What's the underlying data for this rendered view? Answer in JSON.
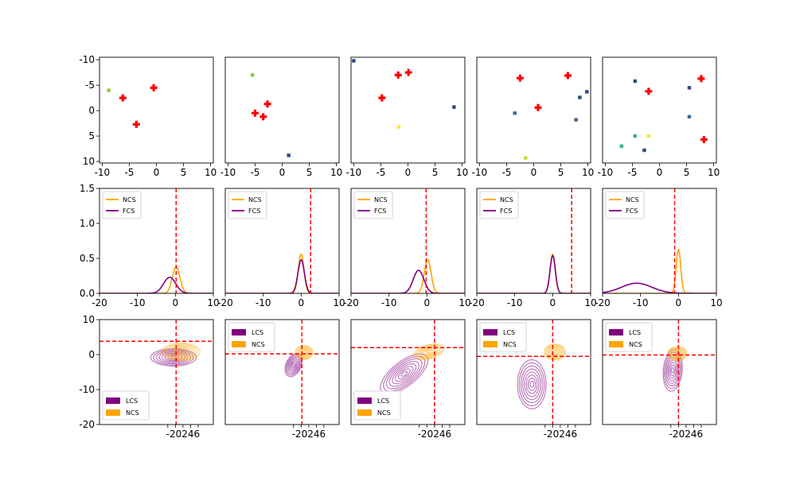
{
  "colors": {
    "ncs": "#FFA500",
    "fcs": "#800080",
    "lcs": "#800080",
    "marker": "#FF0000",
    "ref_line": "#FF0000",
    "axes": "#000000"
  },
  "chart_data": [
    {
      "type": "scatter",
      "row": 1,
      "col": 1,
      "xlim": [
        -10.5,
        10.5
      ],
      "ylim": [
        10.3,
        -10.5
      ],
      "y_inverted": true,
      "xticks": [
        "-10",
        "-5",
        "0",
        "5",
        "10"
      ],
      "yticks": [
        "-10",
        "-5",
        "0",
        "5",
        "10"
      ],
      "cross_markers": [
        {
          "x": -0.5,
          "y": -4.5
        },
        {
          "x": -6.2,
          "y": -2.5
        },
        {
          "x": -3.7,
          "y": 2.7
        }
      ],
      "square_markers": [
        {
          "x": -8.8,
          "y": -4.0,
          "color": "#9ACD32"
        }
      ]
    },
    {
      "type": "scatter",
      "row": 1,
      "col": 2,
      "xlim": [
        -10.5,
        10.5
      ],
      "ylim": [
        10.3,
        -10.5
      ],
      "y_inverted": true,
      "xticks": [
        "-10",
        "-5",
        "0",
        "5",
        "10"
      ],
      "cross_markers": [
        {
          "x": -2.7,
          "y": -1.3
        },
        {
          "x": -5.0,
          "y": 0.5
        },
        {
          "x": -3.5,
          "y": 1.2
        }
      ],
      "square_markers": [
        {
          "x": -5.5,
          "y": -7.0,
          "color": "#7CCD4C"
        },
        {
          "x": 1.2,
          "y": 8.8,
          "color": "#2E4A7F"
        }
      ]
    },
    {
      "type": "scatter",
      "row": 1,
      "col": 3,
      "xlim": [
        -10.5,
        10.5
      ],
      "ylim": [
        10.3,
        -10.5
      ],
      "y_inverted": true,
      "xticks": [
        "-10",
        "-5",
        "0",
        "5",
        "10"
      ],
      "cross_markers": [
        {
          "x": 0.1,
          "y": -7.5
        },
        {
          "x": -1.8,
          "y": -7.0
        },
        {
          "x": -4.8,
          "y": -2.5
        }
      ],
      "square_markers": [
        {
          "x": -10.0,
          "y": -9.8,
          "color": "#2E4A7F"
        },
        {
          "x": 8.5,
          "y": -0.7,
          "color": "#2E4A7F"
        },
        {
          "x": -1.7,
          "y": 3.2,
          "color": "#FDE725"
        }
      ]
    },
    {
      "type": "scatter",
      "row": 1,
      "col": 4,
      "xlim": [
        -10.5,
        10.5
      ],
      "ylim": [
        10.3,
        -10.5
      ],
      "y_inverted": true,
      "xticks": [
        "-10",
        "-5",
        "0",
        "5",
        "10"
      ],
      "cross_markers": [
        {
          "x": 6.3,
          "y": -6.9
        },
        {
          "x": -2.5,
          "y": -6.4
        },
        {
          "x": 0.8,
          "y": -0.6
        }
      ],
      "square_markers": [
        {
          "x": 9.8,
          "y": -3.7,
          "color": "#2E4A7F"
        },
        {
          "x": 8.5,
          "y": -2.6,
          "color": "#2E4A7F"
        },
        {
          "x": -3.5,
          "y": 0.5,
          "color": "#3B6A9A"
        },
        {
          "x": 7.8,
          "y": 1.8,
          "color": "#3B6A9A"
        },
        {
          "x": -1.5,
          "y": 9.3,
          "color": "#C5D930"
        }
      ]
    },
    {
      "type": "scatter",
      "row": 1,
      "col": 5,
      "xlim": [
        -10.5,
        10.5
      ],
      "ylim": [
        10.3,
        -10.5
      ],
      "y_inverted": true,
      "xticks": [
        "-10",
        "-5",
        "0",
        "5",
        "10"
      ],
      "cross_markers": [
        {
          "x": 7.7,
          "y": -6.3
        },
        {
          "x": -2.0,
          "y": -3.8
        },
        {
          "x": 8.2,
          "y": 5.7
        }
      ],
      "square_markers": [
        {
          "x": -4.5,
          "y": -5.8,
          "color": "#2E4A7F"
        },
        {
          "x": 5.5,
          "y": -4.5,
          "color": "#2E4A7F"
        },
        {
          "x": 5.5,
          "y": 1.2,
          "color": "#3B6A9A"
        },
        {
          "x": -4.5,
          "y": 5.0,
          "color": "#35B779"
        },
        {
          "x": -2.0,
          "y": 5.0,
          "color": "#FDE725"
        },
        {
          "x": -7.0,
          "y": 7.0,
          "color": "#35B779"
        },
        {
          "x": -2.8,
          "y": 7.8,
          "color": "#2E4A7F"
        }
      ]
    },
    {
      "type": "line",
      "row": 2,
      "col": 1,
      "xlim": [
        -20,
        10
      ],
      "ylim": [
        0,
        1.5
      ],
      "xticks": [
        "-20",
        "-10",
        "0",
        "10"
      ],
      "yticks": [
        "0.0",
        "0.5",
        "1.0",
        "1.5"
      ],
      "vline": 0.2,
      "legend": "upper left",
      "series": [
        {
          "name": "NCS",
          "color": "#FFA500",
          "mu": 0.2,
          "sigma": 1.0,
          "amp": 0.38
        },
        {
          "name": "FCS",
          "color": "#800080",
          "mu": -1.5,
          "sigma": 1.6,
          "amp": 0.23
        }
      ]
    },
    {
      "type": "line",
      "row": 2,
      "col": 2,
      "xlim": [
        -20,
        10
      ],
      "ylim": [
        0,
        1.5
      ],
      "xticks": [
        "-20",
        "-10",
        "0",
        "10"
      ],
      "vline": 2.5,
      "legend": "upper left",
      "series": [
        {
          "name": "NCS",
          "color": "#FFA500",
          "mu": 0.0,
          "sigma": 0.75,
          "amp": 0.56
        },
        {
          "name": "FCS",
          "color": "#800080",
          "mu": 0.0,
          "sigma": 0.85,
          "amp": 0.48
        }
      ]
    },
    {
      "type": "line",
      "row": 2,
      "col": 3,
      "xlim": [
        -20,
        10
      ],
      "ylim": [
        0,
        1.5
      ],
      "xticks": [
        "-20",
        "-10",
        "0",
        "10"
      ],
      "vline": -0.2,
      "legend": "upper left",
      "series": [
        {
          "name": "NCS",
          "color": "#FFA500",
          "mu": 0.2,
          "sigma": 0.9,
          "amp": 0.48
        },
        {
          "name": "FCS",
          "color": "#800080",
          "mu": -2.2,
          "sigma": 1.4,
          "amp": 0.33
        }
      ]
    },
    {
      "type": "line",
      "row": 2,
      "col": 4,
      "xlim": [
        -20,
        10
      ],
      "ylim": [
        0,
        1.5
      ],
      "xticks": [
        "-20",
        "-10",
        "0",
        "10"
      ],
      "vline": 5.0,
      "legend": "upper left",
      "series": [
        {
          "name": "NCS",
          "color": "#FFA500",
          "mu": 0.0,
          "sigma": 0.7,
          "amp": 0.56
        },
        {
          "name": "FCS",
          "color": "#800080",
          "mu": 0.0,
          "sigma": 0.7,
          "amp": 0.54
        }
      ]
    },
    {
      "type": "line",
      "row": 2,
      "col": 5,
      "xlim": [
        -20,
        10
      ],
      "ylim": [
        0,
        1.5
      ],
      "xticks": [
        "-20",
        "-10",
        "0",
        "10"
      ],
      "vline": -1.0,
      "legend": "upper left",
      "series": [
        {
          "name": "NCS",
          "color": "#FFA500",
          "mu": 0.0,
          "sigma": 0.6,
          "amp": 0.63
        },
        {
          "name": "FCS",
          "color": "#800080",
          "mu": -11.0,
          "sigma": 4.0,
          "amp": 0.145
        }
      ]
    },
    {
      "type": "contour",
      "row": 3,
      "col": 1,
      "xlim": [
        -20,
        10
      ],
      "ylim": [
        -20,
        10
      ],
      "xticks": [
        "-2",
        "0",
        "2",
        "4",
        "6"
      ],
      "yticks": [
        "-20",
        "-10",
        "0",
        "10"
      ],
      "vline": 0.2,
      "hline": 3.8,
      "legend": "lower left",
      "series": [
        {
          "name": "LCS",
          "color": "#800080",
          "cx": -0.5,
          "cy": -0.8,
          "rx": 6.0,
          "ry": 2.5,
          "rot": 0
        },
        {
          "name": "NCS",
          "color": "#FFA500",
          "cx": 1.5,
          "cy": 0.8,
          "rx": 5.0,
          "ry": 2.5,
          "rot": 0
        }
      ]
    },
    {
      "type": "contour",
      "row": 3,
      "col": 2,
      "xlim": [
        -20,
        10
      ],
      "ylim": [
        -20,
        10
      ],
      "xticks": [
        "-2",
        "0",
        "2",
        "4",
        "6"
      ],
      "vline": 0.2,
      "hline": 0.2,
      "legend": "upper left",
      "series": [
        {
          "name": "LCS",
          "color": "#800080",
          "cx": -2.0,
          "cy": -3.0,
          "rx": 2.0,
          "ry": 3.5,
          "rot": 25
        },
        {
          "name": "NCS",
          "color": "#FFA500",
          "cx": 0.8,
          "cy": 0.6,
          "rx": 2.3,
          "ry": 2.0,
          "rot": 0
        }
      ]
    },
    {
      "type": "contour",
      "row": 3,
      "col": 3,
      "xlim": [
        -20,
        10
      ],
      "ylim": [
        -20,
        10
      ],
      "xticks": [
        "-2",
        "0",
        "2",
        "4",
        "6"
      ],
      "vline": 2.0,
      "hline": 2.0,
      "legend": "lower left",
      "series": [
        {
          "name": "LCS",
          "color": "#800080",
          "cx": -6.0,
          "cy": -5.5,
          "rx": 7.5,
          "ry": 3.5,
          "rot": -38
        },
        {
          "name": "NCS",
          "color": "#FFA500",
          "cx": 0.5,
          "cy": 0.8,
          "rx": 4.0,
          "ry": 2.0,
          "rot": -15
        }
      ]
    },
    {
      "type": "contour",
      "row": 3,
      "col": 4,
      "xlim": [
        -20,
        10
      ],
      "ylim": [
        -20,
        10
      ],
      "xticks": [
        "-2",
        "0",
        "2",
        "4",
        "6"
      ],
      "vline": 0.0,
      "hline": -0.5,
      "legend": "upper left",
      "series": [
        {
          "name": "LCS",
          "color": "#800080",
          "cx": -5.5,
          "cy": -8.5,
          "rx": 3.8,
          "ry": 7.0,
          "rot": 0
        },
        {
          "name": "NCS",
          "color": "#FFA500",
          "cx": 0.6,
          "cy": 0.7,
          "rx": 2.8,
          "ry": 2.3,
          "rot": 0
        }
      ]
    },
    {
      "type": "contour",
      "row": 3,
      "col": 5,
      "xlim": [
        -20,
        10
      ],
      "ylim": [
        -20,
        10
      ],
      "xticks": [
        "-2",
        "0",
        "2",
        "4",
        "6"
      ],
      "vline": 0.0,
      "hline": -0.1,
      "legend": "upper left",
      "series": [
        {
          "name": "LCS",
          "color": "#800080",
          "cx": -1.5,
          "cy": -4.5,
          "rx": 2.5,
          "ry": 6.0,
          "rot": 5
        },
        {
          "name": "NCS",
          "color": "#FFA500",
          "cx": -0.3,
          "cy": 0.3,
          "rx": 2.5,
          "ry": 2.0,
          "rot": 0
        }
      ]
    }
  ]
}
